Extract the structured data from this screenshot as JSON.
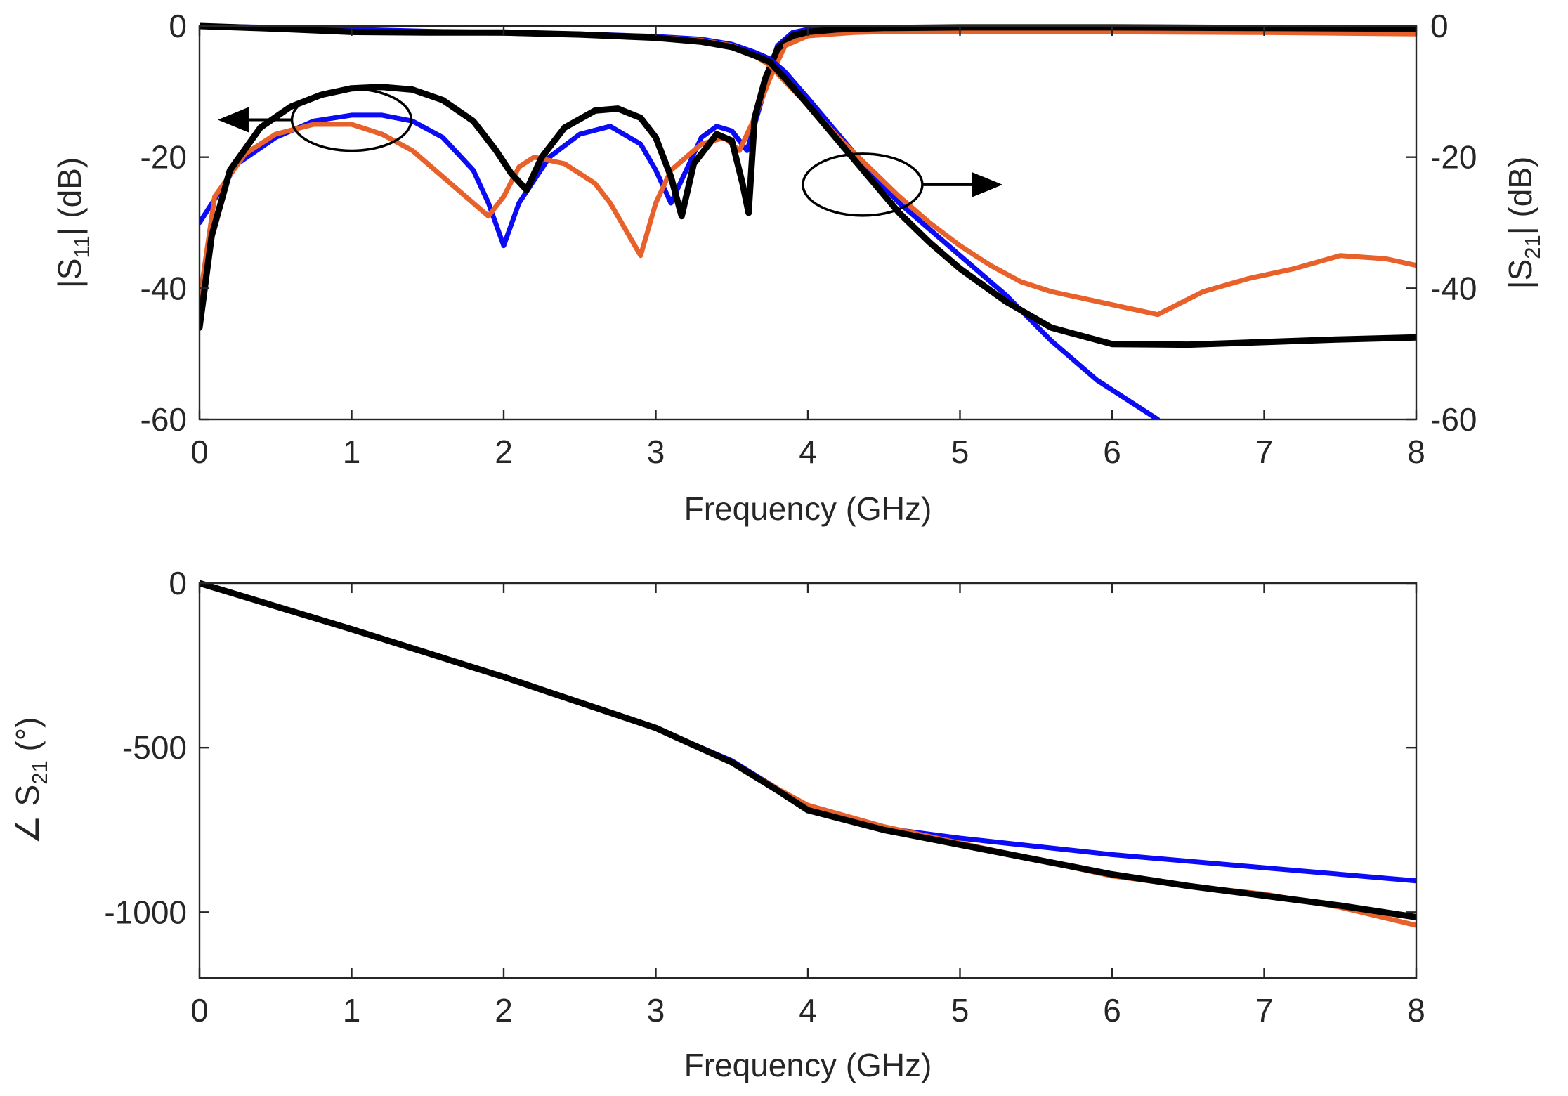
{
  "figure": {
    "background": "#ffffff"
  },
  "chart_data": [
    {
      "id": "magnitude",
      "type": "line",
      "xlabel": "Frequency (GHz)",
      "ylabel_left": {
        "prefix": "|S",
        "sub": "11",
        "suffix": "|  (dB)"
      },
      "ylabel_right": {
        "prefix": "|S",
        "sub": "21",
        "suffix": "| (dB)"
      },
      "xlim": [
        0,
        8
      ],
      "ylim": [
        -60,
        0
      ],
      "xticks": [
        0,
        1,
        2,
        3,
        4,
        5,
        6,
        7,
        8
      ],
      "xtick_labels": [
        "0",
        "1",
        "2",
        "3",
        "4",
        "5",
        "6",
        "7",
        "8"
      ],
      "yticks": [
        0,
        -20,
        -40,
        -60
      ],
      "ytick_labels": [
        "0",
        "-20",
        "-40",
        "-60"
      ],
      "right_ytick_labels": [
        "0",
        "-20",
        "-40",
        "-60"
      ],
      "grid": false,
      "annotations": [
        {
          "type": "ellipse-arrow",
          "axis": "left",
          "cx": 1.0,
          "cy": -14.3,
          "arrow_to_x": 0.12
        },
        {
          "type": "ellipse-arrow",
          "axis": "right",
          "cx": 4.36,
          "cy": -24.2,
          "arrow_to_x": 5.28
        }
      ],
      "series": [
        {
          "name": "S11 blue",
          "color": "#0b0bf5",
          "width": 7,
          "x": [
            0,
            0.25,
            0.5,
            0.75,
            1.0,
            1.2,
            1.4,
            1.6,
            1.8,
            1.9,
            2.0,
            2.1,
            2.3,
            2.5,
            2.7,
            2.9,
            3.0,
            3.1,
            3.2,
            3.3,
            3.4,
            3.5,
            3.6,
            3.7,
            3.8,
            3.9
          ],
          "values": [
            -30,
            -21,
            -17,
            -14.5,
            -13.6,
            -13.6,
            -14.5,
            -17,
            -22,
            -27,
            -33.5,
            -27,
            -20,
            -16.5,
            -15.3,
            -18,
            -22,
            -27,
            -22,
            -17,
            -15.3,
            -16,
            -19,
            -11,
            -3,
            -1
          ]
        },
        {
          "name": "S11 orange",
          "color": "#e8602a",
          "width": 7,
          "x": [
            0,
            0.1,
            0.3,
            0.5,
            0.75,
            1.0,
            1.2,
            1.4,
            1.6,
            1.8,
            1.9,
            2.0,
            2.1,
            2.2,
            2.4,
            2.6,
            2.7,
            2.8,
            2.9,
            3.0,
            3.1,
            3.2,
            3.3,
            3.45,
            3.55,
            3.65,
            3.75,
            3.85
          ],
          "values": [
            -42,
            -26,
            -19.5,
            -16.5,
            -15,
            -15,
            -16.5,
            -19,
            -23,
            -27,
            -29,
            -26,
            -21.5,
            -20,
            -21,
            -24,
            -27,
            -31,
            -35,
            -27,
            -22,
            -20,
            -18,
            -17,
            -19,
            -14,
            -8,
            -3
          ]
        },
        {
          "name": "S11 black",
          "color": "#000000",
          "width": 9,
          "x": [
            0,
            0.08,
            0.2,
            0.4,
            0.6,
            0.8,
            1.0,
            1.2,
            1.4,
            1.6,
            1.8,
            1.95,
            2.05,
            2.15,
            2.25,
            2.4,
            2.6,
            2.75,
            2.9,
            3.0,
            3.1,
            3.17,
            3.25,
            3.4,
            3.5,
            3.57,
            3.61,
            3.65,
            3.72,
            3.8,
            3.9
          ],
          "values": [
            -46,
            -32,
            -22,
            -15.5,
            -12.3,
            -10.5,
            -9.5,
            -9.3,
            -9.7,
            -11.3,
            -14.5,
            -19,
            -22.5,
            -25,
            -20,
            -15.5,
            -12.9,
            -12.6,
            -14,
            -17,
            -23,
            -29,
            -21,
            -16.5,
            -17.5,
            -24,
            -28.5,
            -14,
            -8,
            -3.5,
            -1.5
          ]
        },
        {
          "name": "S21 blue",
          "color": "#0b0bf5",
          "width": 7,
          "x": [
            0,
            0.5,
            1.0,
            1.5,
            2.0,
            2.5,
            3.0,
            3.3,
            3.5,
            3.65,
            3.75,
            3.85,
            4.0,
            4.2,
            4.4,
            4.6,
            4.8,
            5.0,
            5.3,
            5.6,
            5.9,
            6.3
          ],
          "values": [
            0,
            -0.2,
            -0.5,
            -0.8,
            -1.0,
            -1.2,
            -1.6,
            -2.0,
            -2.8,
            -4.0,
            -5.0,
            -7,
            -11,
            -16.5,
            -22,
            -27,
            -31,
            -35,
            -41,
            -48,
            -54,
            -60
          ]
        },
        {
          "name": "S21 orange",
          "color": "#e8602a",
          "width": 7,
          "x": [
            0,
            0.5,
            1.0,
            1.5,
            2.0,
            2.5,
            3.0,
            3.3,
            3.5,
            3.65,
            3.75,
            3.85,
            4.0,
            4.2,
            4.4,
            4.6,
            4.8,
            5.0,
            5.2,
            5.4,
            5.6,
            5.8,
            6.0,
            6.3,
            6.6,
            6.9,
            7.2,
            7.5,
            7.8,
            8.0
          ],
          "values": [
            0,
            -0.4,
            -0.8,
            -1.0,
            -1.1,
            -1.3,
            -1.7,
            -2.2,
            -3.0,
            -4.5,
            -6,
            -8.5,
            -12,
            -17,
            -21.5,
            -26,
            -30,
            -33.5,
            -36.5,
            -39,
            -40.5,
            -41.5,
            -42.5,
            -44,
            -40.5,
            -38.5,
            -37,
            -35,
            -35.5,
            -36.5
          ]
        },
        {
          "name": "S21 black",
          "color": "#000000",
          "width": 9,
          "x": [
            0,
            0.5,
            1.0,
            1.5,
            2.0,
            2.5,
            3.0,
            3.3,
            3.5,
            3.65,
            3.75,
            3.85,
            4.0,
            4.2,
            4.4,
            4.6,
            4.8,
            5.0,
            5.3,
            5.6,
            6.0,
            6.5,
            7.0,
            7.5,
            8.0
          ],
          "values": [
            0,
            -0.4,
            -0.9,
            -1.0,
            -1.0,
            -1.3,
            -1.8,
            -2.4,
            -3.2,
            -4.5,
            -5.5,
            -8,
            -12,
            -17.5,
            -23,
            -28.5,
            -33,
            -37,
            -42,
            -46,
            -48.5,
            -48.6,
            -48.2,
            -47.8,
            -47.5
          ]
        },
        {
          "name": "S11 rise blue",
          "color": "#0b0bf5",
          "width": 7,
          "x": [
            3.9,
            4.0,
            4.2,
            4.5,
            5.0,
            6.0,
            7.0,
            8.0
          ],
          "values": [
            -1,
            -0.5,
            -0.3,
            -0.2,
            -0.2,
            -0.2,
            -0.2,
            -0.3
          ]
        },
        {
          "name": "S11 rise orange",
          "color": "#e8602a",
          "width": 7,
          "x": [
            3.85,
            4.0,
            4.3,
            4.6,
            5.0,
            6.0,
            7.0,
            8.0
          ],
          "values": [
            -3,
            -1.5,
            -1.0,
            -0.8,
            -0.8,
            -0.9,
            -1.0,
            -1.2
          ]
        },
        {
          "name": "S11 rise black",
          "color": "#000000",
          "width": 9,
          "x": [
            3.9,
            4.0,
            4.2,
            4.5,
            5.0,
            6.0,
            7.0,
            8.0
          ],
          "values": [
            -1.5,
            -0.9,
            -0.5,
            -0.3,
            -0.2,
            -0.2,
            -0.3,
            -0.4
          ]
        }
      ]
    },
    {
      "id": "phase",
      "type": "line",
      "xlabel": "Frequency (GHz)",
      "ylabel_left": {
        "prefix": "∠ S",
        "sub": "21",
        "suffix": " (°)"
      },
      "xlim": [
        0,
        8
      ],
      "ylim": [
        -1200,
        0
      ],
      "xticks": [
        0,
        1,
        2,
        3,
        4,
        5,
        6,
        7,
        8
      ],
      "xtick_labels": [
        "0",
        "1",
        "2",
        "3",
        "4",
        "5",
        "6",
        "7",
        "8"
      ],
      "yticks": [
        0,
        -500,
        -1000
      ],
      "ytick_labels": [
        "0",
        "-500",
        "-1000"
      ],
      "grid": false,
      "series": [
        {
          "name": "Phase blue",
          "color": "#0b0bf5",
          "width": 7,
          "x": [
            0,
            1,
            2,
            3,
            3.5,
            3.8,
            4.0,
            4.5,
            5.0,
            6.0,
            7.0,
            8.0
          ],
          "values": [
            0,
            -140,
            -285,
            -440,
            -540,
            -625,
            -680,
            -745,
            -775,
            -825,
            -865,
            -905
          ]
        },
        {
          "name": "Phase orange",
          "color": "#e8602a",
          "width": 7,
          "x": [
            0,
            1,
            2,
            3,
            3.5,
            3.8,
            4.0,
            4.5,
            5.0,
            5.5,
            6.0,
            6.5,
            7.0,
            7.5,
            8.0
          ],
          "values": [
            0,
            -140,
            -285,
            -440,
            -545,
            -625,
            -675,
            -740,
            -790,
            -840,
            -890,
            -920,
            -945,
            -985,
            -1040
          ]
        },
        {
          "name": "Phase black",
          "color": "#000000",
          "width": 9,
          "x": [
            0,
            1,
            2,
            3,
            3.5,
            3.8,
            4.0,
            4.5,
            5.0,
            5.5,
            6.0,
            6.5,
            7.0,
            7.5,
            8.0
          ],
          "values": [
            0,
            -140,
            -285,
            -440,
            -545,
            -630,
            -690,
            -750,
            -795,
            -840,
            -885,
            -920,
            -950,
            -980,
            -1015
          ]
        }
      ]
    }
  ]
}
